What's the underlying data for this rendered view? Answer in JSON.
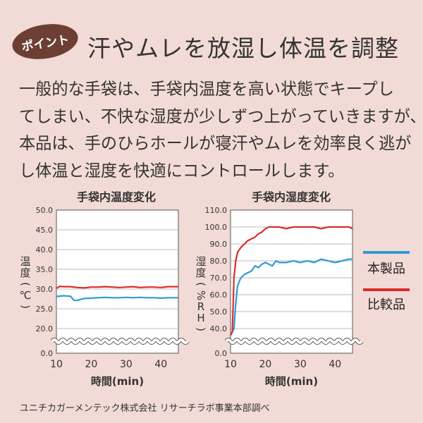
{
  "badge": "ポイント",
  "headline": "汗やムレを放湿し体温を調整",
  "body_lines": [
    "一般的な手袋は、手袋内温度を高い状態でキープし",
    "てしまい、不快な湿度が少しずつ上がっていきますが、",
    "本品は、手のひらホールが寝汗やムレを効率良く逃が",
    "し体温と湿度を快適にコントロールします。"
  ],
  "legend": {
    "product": {
      "label": "本製品",
      "color": "#2e9bd3"
    },
    "compare": {
      "label": "比較品",
      "color": "#d92d2a"
    }
  },
  "footer": "ユニチカガーメンテック株式会社 リサーチラボ事業本部調べ",
  "chart_data": [
    {
      "type": "line",
      "title": "手袋内温度変化",
      "xlabel": "時間(min)",
      "ylabel": "温度(℃)",
      "x_ticks": [
        10,
        20,
        30,
        40
      ],
      "y_ticks": [
        "0.0",
        "20.0",
        "25.0",
        "30.0",
        "35.0",
        "40.0",
        "45.0",
        "50.0"
      ],
      "ylim": [
        20,
        50
      ],
      "xlim": [
        10,
        45
      ],
      "axis_break": true,
      "series": [
        {
          "name": "本製品",
          "x": [
            10,
            12,
            14,
            15,
            16,
            17,
            18,
            20,
            22,
            24,
            26,
            28,
            30,
            32,
            34,
            36,
            38,
            40,
            42,
            44,
            45
          ],
          "y": [
            28.1,
            28.3,
            28.2,
            27.2,
            27.1,
            27.4,
            27.6,
            27.7,
            27.8,
            27.9,
            27.8,
            27.8,
            27.9,
            27.8,
            27.9,
            27.8,
            27.8,
            27.7,
            27.8,
            27.8,
            27.8
          ]
        },
        {
          "name": "比較品",
          "x": [
            10,
            11,
            12,
            14,
            16,
            18,
            20,
            22,
            24,
            26,
            28,
            30,
            32,
            34,
            36,
            38,
            40,
            42,
            44,
            45
          ],
          "y": [
            30.2,
            30.7,
            30.6,
            30.6,
            30.4,
            30.3,
            30.5,
            30.5,
            30.6,
            30.5,
            30.4,
            30.5,
            30.6,
            30.4,
            30.5,
            30.5,
            30.4,
            30.6,
            30.6,
            30.6
          ]
        }
      ]
    },
    {
      "type": "line",
      "title": "手袋内湿度変化",
      "xlabel": "時間(min)",
      "ylabel": "湿度(%RH)",
      "x_ticks": [
        10,
        20,
        30,
        40
      ],
      "y_ticks": [
        "0.0",
        "40.0",
        "50.0",
        "60.0",
        "70.0",
        "80.0",
        "90.0",
        "100.0",
        "110.0"
      ],
      "ylim": [
        40,
        110
      ],
      "xlim": [
        10,
        45
      ],
      "axis_break": true,
      "series": [
        {
          "name": "本製品",
          "x": [
            10,
            11,
            11.5,
            12,
            12.5,
            13,
            14,
            15,
            16,
            17,
            18,
            19,
            20,
            21,
            22,
            23,
            24,
            26,
            28,
            30,
            32,
            34,
            36,
            38,
            40,
            42,
            44,
            45
          ],
          "y": [
            36,
            40,
            55,
            65,
            68,
            70,
            72,
            73,
            74,
            77,
            76,
            78,
            79,
            78,
            77,
            80,
            79,
            79,
            80,
            79,
            80,
            79,
            81,
            80,
            79,
            80,
            81,
            81
          ]
        },
        {
          "name": "比較品",
          "x": [
            10,
            10.5,
            11,
            11.5,
            12,
            13,
            14,
            15,
            16,
            17,
            18,
            19,
            20,
            21,
            22,
            24,
            26,
            28,
            30,
            32,
            34,
            36,
            38,
            40,
            42,
            44,
            45
          ],
          "y": [
            36,
            38,
            70,
            80,
            85,
            88,
            90,
            92,
            93,
            94,
            96,
            97,
            99,
            100,
            100,
            100,
            99,
            100,
            100,
            100,
            100,
            99,
            100,
            100,
            100,
            100,
            99
          ]
        }
      ]
    }
  ]
}
